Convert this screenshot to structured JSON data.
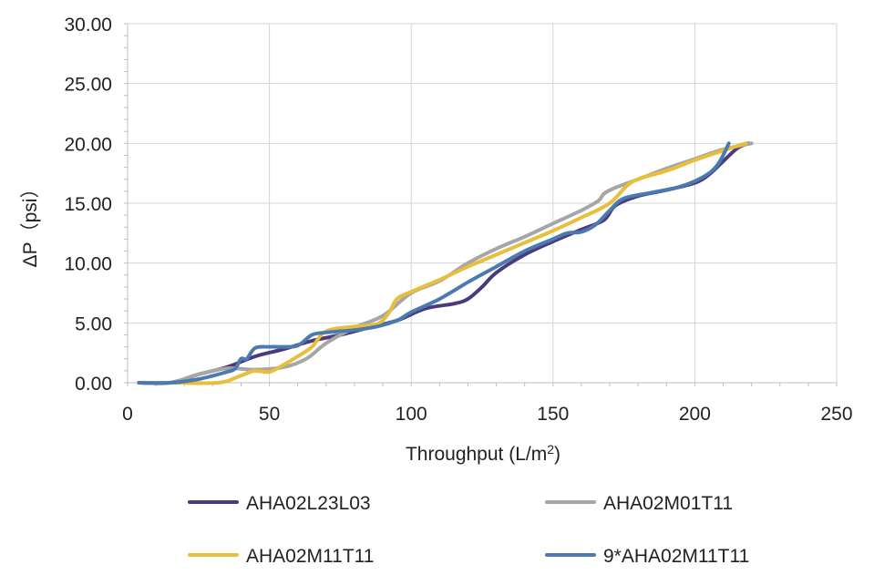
{
  "chart_data": {
    "type": "line",
    "xlabel": "Throughput (L/m",
    "xlabel_sup": "2",
    "xlabel_tail": ")",
    "ylabel": "ΔP（psi）",
    "xlim": [
      0,
      250
    ],
    "ylim": [
      0,
      30
    ],
    "x_ticks": [
      "0",
      "50",
      "100",
      "150",
      "200",
      "250"
    ],
    "y_ticks": [
      "0.00",
      "5.00",
      "10.00",
      "15.00",
      "20.00",
      "25.00",
      "30.00"
    ],
    "grid": true,
    "legend_position": "bottom",
    "series": [
      {
        "name": "AHA02L23L03",
        "color": "#4b3a7c",
        "points": [
          [
            4,
            0
          ],
          [
            15,
            0
          ],
          [
            25,
            0.7
          ],
          [
            35,
            1.3
          ],
          [
            45,
            2.2
          ],
          [
            55,
            2.8
          ],
          [
            65,
            3.5
          ],
          [
            75,
            4.0
          ],
          [
            85,
            4.6
          ],
          [
            95,
            5.2
          ],
          [
            105,
            6.2
          ],
          [
            115,
            6.6
          ],
          [
            120,
            7.0
          ],
          [
            125,
            8.0
          ],
          [
            130,
            9.2
          ],
          [
            140,
            10.7
          ],
          [
            150,
            11.8
          ],
          [
            160,
            12.8
          ],
          [
            168,
            13.6
          ],
          [
            172,
            14.8
          ],
          [
            180,
            15.6
          ],
          [
            190,
            16.1
          ],
          [
            200,
            16.7
          ],
          [
            205,
            17.4
          ],
          [
            210,
            18.5
          ],
          [
            215,
            19.6
          ],
          [
            219,
            20
          ]
        ]
      },
      {
        "name": "AHA02M01T11",
        "color": "#a6a6a6",
        "points": [
          [
            4,
            0
          ],
          [
            15,
            0
          ],
          [
            25,
            0.7
          ],
          [
            35,
            1.2
          ],
          [
            45,
            1.1
          ],
          [
            55,
            1.3
          ],
          [
            63,
            2.0
          ],
          [
            70,
            3.3
          ],
          [
            80,
            4.6
          ],
          [
            90,
            5.6
          ],
          [
            100,
            7.5
          ],
          [
            110,
            8.5
          ],
          [
            120,
            10.0
          ],
          [
            130,
            11.2
          ],
          [
            140,
            12.2
          ],
          [
            150,
            13.3
          ],
          [
            160,
            14.4
          ],
          [
            166,
            15.2
          ],
          [
            168,
            15.8
          ],
          [
            172,
            16.3
          ],
          [
            180,
            17.0
          ],
          [
            190,
            17.9
          ],
          [
            200,
            18.7
          ],
          [
            210,
            19.5
          ],
          [
            220,
            20
          ]
        ]
      },
      {
        "name": "AHA02M11T11",
        "color": "#e8bf3a",
        "points": [
          [
            4,
            0
          ],
          [
            15,
            0
          ],
          [
            32,
            0
          ],
          [
            40,
            0.6
          ],
          [
            45,
            1.0
          ],
          [
            50,
            0.9
          ],
          [
            55,
            1.5
          ],
          [
            60,
            2.2
          ],
          [
            65,
            3.0
          ],
          [
            70,
            4.3
          ],
          [
            80,
            4.7
          ],
          [
            88,
            4.9
          ],
          [
            92,
            5.8
          ],
          [
            95,
            7.0
          ],
          [
            100,
            7.6
          ],
          [
            110,
            8.6
          ],
          [
            120,
            9.7
          ],
          [
            130,
            10.7
          ],
          [
            140,
            11.7
          ],
          [
            150,
            12.7
          ],
          [
            160,
            13.8
          ],
          [
            170,
            15.0
          ],
          [
            178,
            16.8
          ],
          [
            190,
            17.7
          ],
          [
            200,
            18.6
          ],
          [
            210,
            19.4
          ],
          [
            218,
            20
          ]
        ]
      },
      {
        "name": "9*AHA02M11T11",
        "color": "#4a7ab0",
        "points": [
          [
            4,
            0
          ],
          [
            15,
            0
          ],
          [
            25,
            0.3
          ],
          [
            35,
            0.9
          ],
          [
            38,
            1.2
          ],
          [
            40,
            2.0
          ],
          [
            42,
            2.0
          ],
          [
            45,
            2.9
          ],
          [
            50,
            3.0
          ],
          [
            55,
            3.0
          ],
          [
            60,
            3.1
          ],
          [
            65,
            4.0
          ],
          [
            70,
            4.2
          ],
          [
            80,
            4.4
          ],
          [
            88,
            4.7
          ],
          [
            95,
            5.2
          ],
          [
            100,
            5.9
          ],
          [
            110,
            7.0
          ],
          [
            120,
            8.4
          ],
          [
            130,
            9.7
          ],
          [
            140,
            11.0
          ],
          [
            150,
            12.0
          ],
          [
            155,
            12.5
          ],
          [
            160,
            12.6
          ],
          [
            165,
            13.2
          ],
          [
            170,
            14.4
          ],
          [
            175,
            15.4
          ],
          [
            185,
            15.9
          ],
          [
            195,
            16.4
          ],
          [
            203,
            17.2
          ],
          [
            208,
            18.2
          ],
          [
            212,
            20
          ]
        ]
      }
    ]
  }
}
